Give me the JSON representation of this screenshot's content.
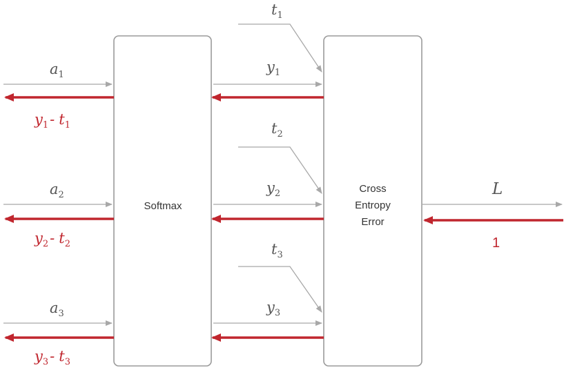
{
  "boxes": {
    "softmax": "Softmax",
    "cross_entropy": [
      "Cross",
      "Entropy",
      "Error"
    ]
  },
  "inputs": [
    {
      "var": "a",
      "sub": "1"
    },
    {
      "var": "a",
      "sub": "2"
    },
    {
      "var": "a",
      "sub": "3"
    }
  ],
  "outputs": [
    {
      "var": "y",
      "sub": "1"
    },
    {
      "var": "y",
      "sub": "2"
    },
    {
      "var": "y",
      "sub": "3"
    }
  ],
  "targets": [
    {
      "var": "t",
      "sub": "1"
    },
    {
      "var": "t",
      "sub": "2"
    },
    {
      "var": "t",
      "sub": "3"
    }
  ],
  "gradients": [
    {
      "y": "y",
      "y_sub": "1",
      "minus": "-",
      "t": "t",
      "t_sub": "1"
    },
    {
      "y": "y",
      "y_sub": "2",
      "minus": "-",
      "t": "t",
      "t_sub": "2"
    },
    {
      "y": "y",
      "y_sub": "3",
      "minus": "-",
      "t": "t",
      "t_sub": "3"
    }
  ],
  "loss": {
    "var": "L",
    "grad": "1"
  },
  "colors": {
    "forward": "#a8a8a8",
    "backward": "#c0262e"
  }
}
